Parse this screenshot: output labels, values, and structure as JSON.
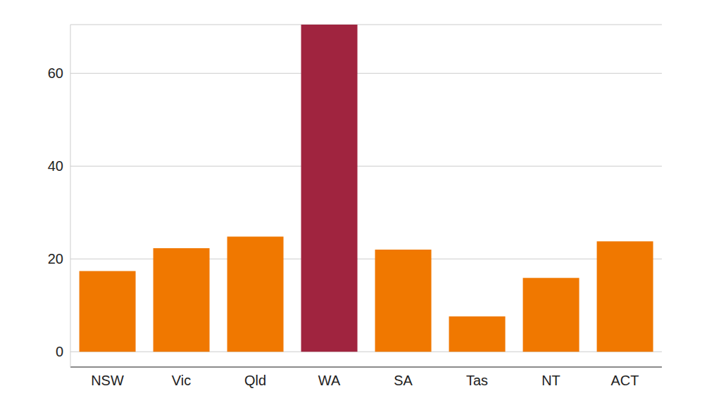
{
  "chart_data": {
    "type": "bar",
    "categories": [
      "NSW",
      "Vic",
      "Qld",
      "WA",
      "SA",
      "Tas",
      "NT",
      "ACT"
    ],
    "values": [
      17.4,
      22.3,
      24.8,
      70.5,
      22.0,
      7.6,
      15.9,
      23.8
    ],
    "colors": [
      "#f07800",
      "#f07800",
      "#f07800",
      "#a0243f",
      "#f07800",
      "#f07800",
      "#f07800",
      "#f07800"
    ],
    "ylim": [
      -3.3,
      70.5
    ],
    "yticks": [
      0,
      20,
      40,
      60
    ],
    "grid": true
  }
}
